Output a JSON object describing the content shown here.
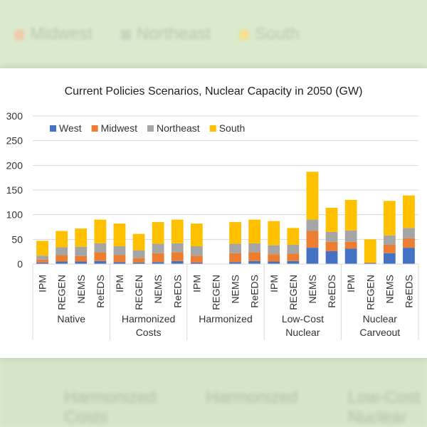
{
  "background": {
    "legend": [
      "Midwest",
      "Northeast",
      "South"
    ],
    "groups": [
      "Harmonized Costs",
      "Harmonized",
      "Low-Cost Nuclear"
    ]
  },
  "colors": {
    "West": "#4472c4",
    "Midwest": "#ed7d31",
    "Northeast": "#a5a5a5",
    "South": "#ffc000"
  },
  "chart_data": {
    "type": "bar",
    "stacked": true,
    "title": "Current Policies Scenarios, Nuclear Capacity in 2050 (GW)",
    "xlabel": "",
    "ylabel": "",
    "ylim": [
      0,
      300
    ],
    "yticks": [
      0,
      50,
      100,
      150,
      200,
      250,
      300
    ],
    "grid": true,
    "legend_position": "top-left",
    "groups": [
      {
        "label_lines": [
          "Native"
        ],
        "categories": [
          "IPM",
          "REGEN",
          "NEMS",
          "ReEDS"
        ]
      },
      {
        "label_lines": [
          "Harmonized",
          "Costs"
        ],
        "categories": [
          "IPM",
          "REGEN",
          "NEMS",
          "ReEDS"
        ]
      },
      {
        "label_lines": [
          "Harmonized"
        ],
        "categories": [
          "IPM",
          "REGEN",
          "NEMS",
          "ReEDS"
        ]
      },
      {
        "label_lines": [
          "Low-Cost",
          "Nuclear"
        ],
        "categories": [
          "IPM",
          "REGEN",
          "NEMS",
          "ReEDS"
        ]
      },
      {
        "label_lines": [
          "Nuclear",
          "Carveout"
        ],
        "categories": [
          "IPM",
          "REGEN",
          "NEMS",
          "ReEDS"
        ]
      }
    ],
    "series": [
      {
        "name": "West",
        "values": [
          3,
          5,
          5,
          6,
          4,
          3,
          4,
          6,
          3,
          0,
          4,
          6,
          5,
          6,
          33,
          26,
          31,
          2,
          22,
          33
        ]
      },
      {
        "name": "Midwest",
        "values": [
          6,
          13,
          11,
          18,
          14,
          9,
          18,
          18,
          14,
          0,
          18,
          18,
          15,
          15,
          34,
          19,
          14,
          1,
          17,
          19
        ]
      },
      {
        "name": "Northeast",
        "values": [
          8,
          16,
          19,
          18,
          18,
          16,
          19,
          18,
          19,
          0,
          19,
          18,
          18,
          18,
          23,
          20,
          23,
          0,
          19,
          21
        ]
      },
      {
        "name": "South",
        "values": [
          30,
          33,
          37,
          48,
          46,
          33,
          44,
          48,
          46,
          0,
          44,
          48,
          49,
          34,
          97,
          49,
          62,
          47,
          70,
          66
        ]
      }
    ]
  }
}
